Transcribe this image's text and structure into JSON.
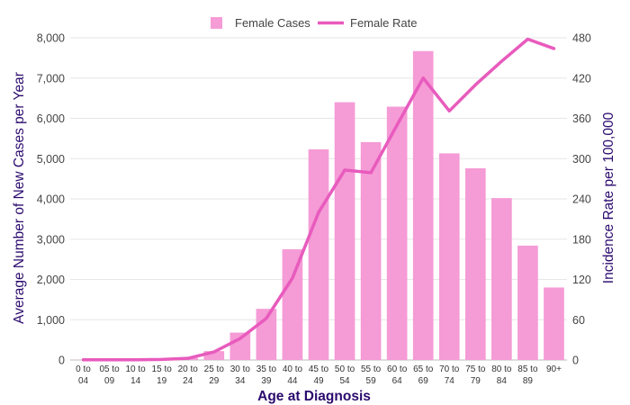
{
  "chart_data": {
    "type": "bar",
    "title": "",
    "categories": [
      "0 to 04",
      "05 to 09",
      "10 to 14",
      "15 to 19",
      "20 to 24",
      "25 to 29",
      "30 to 34",
      "35 to 39",
      "40 to 44",
      "45 to 49",
      "50 to 54",
      "55 to 59",
      "60 to 64",
      "65 to 69",
      "70 to 74",
      "75 to 79",
      "80 to 84",
      "85 to 89",
      "90+"
    ],
    "category_lines": [
      [
        "0 to",
        "04"
      ],
      [
        "05 to",
        "09"
      ],
      [
        "10 to",
        "14"
      ],
      [
        "15 to",
        "19"
      ],
      [
        "20 to",
        "24"
      ],
      [
        "25 to",
        "29"
      ],
      [
        "30 to",
        "34"
      ],
      [
        "35 to",
        "39"
      ],
      [
        "40 to",
        "44"
      ],
      [
        "45 to",
        "49"
      ],
      [
        "50 to",
        "54"
      ],
      [
        "55 to",
        "59"
      ],
      [
        "60 to",
        "64"
      ],
      [
        "65 to",
        "69"
      ],
      [
        "70 to",
        "74"
      ],
      [
        "75 to",
        "79"
      ],
      [
        "80 to",
        "84"
      ],
      [
        "85 to",
        "89"
      ],
      [
        "90+",
        ""
      ]
    ],
    "series": [
      {
        "name": "Female Cases",
        "kind": "bar",
        "axis": "left",
        "color": "#f59bd6",
        "values": [
          2,
          2,
          5,
          15,
          50,
          220,
          680,
          1270,
          2750,
          5230,
          6400,
          5410,
          6290,
          7670,
          5130,
          4760,
          4020,
          2840,
          1800
        ]
      },
      {
        "name": "Female Rate",
        "kind": "line",
        "axis": "right",
        "color": "#e85bbd",
        "values": [
          0.3,
          0.3,
          0.4,
          0.8,
          2.5,
          12,
          32,
          62,
          122,
          220,
          283,
          279,
          350,
          420,
          371,
          410,
          445,
          478,
          464
        ]
      }
    ],
    "xlabel": "Age at Diagnosis",
    "ylabel": "Average Number of New Cases per Year",
    "y2label": "Incidence Rate per 100,000",
    "ylim": [
      0,
      8000
    ],
    "y2lim": [
      0,
      480
    ],
    "yticks": [
      "0",
      "1,000",
      "2,000",
      "3,000",
      "4,000",
      "5,000",
      "6,000",
      "7,000",
      "8,000"
    ],
    "y2ticks": [
      "0",
      "60",
      "120",
      "180",
      "240",
      "300",
      "360",
      "420",
      "480"
    ],
    "grid": true,
    "legend": "top-center"
  }
}
